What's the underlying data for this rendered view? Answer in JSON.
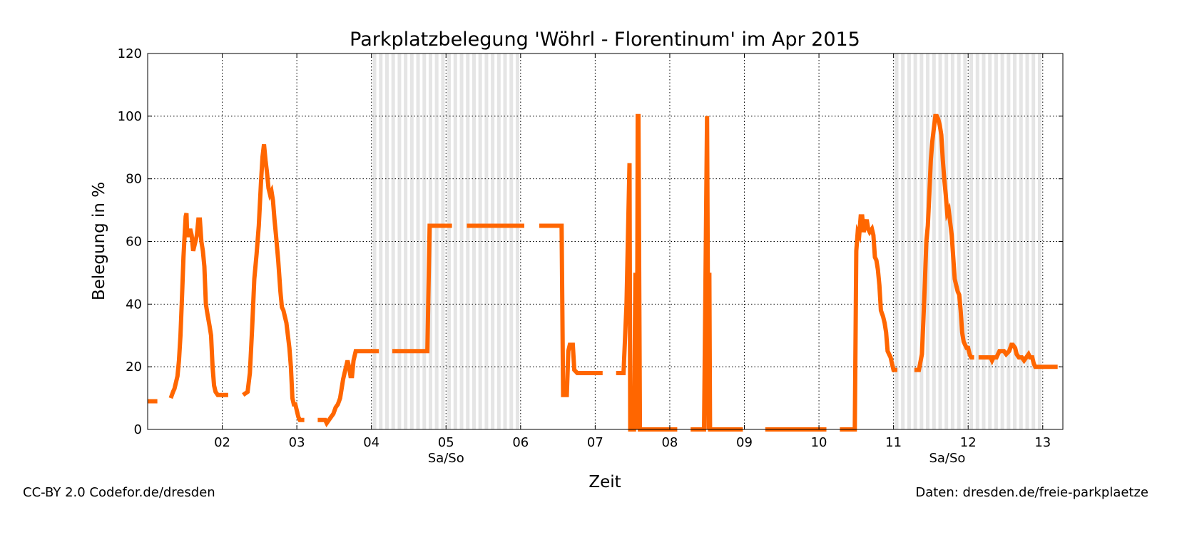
{
  "chart_data": {
    "type": "line",
    "title": "Parkplatzbelegung 'Wöhrl - Florentinum' im Apr 2015",
    "xlabel": "Zeit",
    "ylabel": "Belegung in %",
    "xlim": [
      1.0,
      13.27
    ],
    "ylim": [
      0,
      120
    ],
    "yticks": [
      0,
      20,
      40,
      60,
      80,
      100,
      120
    ],
    "xticks": [
      {
        "x": 2,
        "label": "02"
      },
      {
        "x": 3,
        "label": "03"
      },
      {
        "x": 4,
        "label": "04"
      },
      {
        "x": 5,
        "label": "05"
      },
      {
        "x": 6,
        "label": "06"
      },
      {
        "x": 7,
        "label": "07"
      },
      {
        "x": 8,
        "label": "08"
      },
      {
        "x": 9,
        "label": "09"
      },
      {
        "x": 10,
        "label": "10"
      },
      {
        "x": 11,
        "label": "11"
      },
      {
        "x": 12,
        "label": "12"
      },
      {
        "x": 13,
        "label": "13"
      }
    ],
    "weekend_label": "Sa/So",
    "weekend_ranges": [
      [
        4.0,
        6.0
      ],
      [
        11.0,
        13.0
      ]
    ],
    "weekend_label_positions": [
      5.0,
      11.72
    ],
    "grid": true,
    "series": [
      {
        "color": "#ff6600",
        "segments": [
          [
            [
              1.0,
              9
            ],
            [
              1.13,
              9
            ]
          ],
          [
            [
              1.31,
              10
            ],
            [
              1.34,
              12
            ],
            [
              1.36,
              13
            ],
            [
              1.38,
              15
            ],
            [
              1.4,
              17
            ],
            [
              1.42,
              22
            ],
            [
              1.44,
              30
            ],
            [
              1.46,
              42
            ],
            [
              1.48,
              55
            ],
            [
              1.5,
              64
            ],
            [
              1.51,
              68
            ],
            [
              1.52,
              69
            ],
            [
              1.53,
              62
            ],
            [
              1.55,
              62
            ],
            [
              1.57,
              64
            ],
            [
              1.59,
              62
            ],
            [
              1.61,
              57
            ],
            [
              1.63,
              59
            ],
            [
              1.66,
              62
            ],
            [
              1.68,
              67
            ],
            [
              1.7,
              67
            ],
            [
              1.72,
              60
            ],
            [
              1.74,
              57
            ],
            [
              1.76,
              52
            ],
            [
              1.78,
              40
            ],
            [
              1.8,
              37
            ],
            [
              1.83,
              33
            ],
            [
              1.85,
              30
            ],
            [
              1.87,
              20
            ],
            [
              1.89,
              14
            ],
            [
              1.91,
              12
            ],
            [
              1.94,
              11
            ],
            [
              1.98,
              11
            ],
            [
              2.02,
              11
            ],
            [
              2.08,
              11
            ]
          ],
          [
            [
              2.28,
              11
            ],
            [
              2.34,
              12
            ],
            [
              2.37,
              18
            ],
            [
              2.4,
              32
            ],
            [
              2.43,
              48
            ],
            [
              2.46,
              56
            ],
            [
              2.49,
              65
            ],
            [
              2.52,
              79
            ],
            [
              2.54,
              87
            ],
            [
              2.56,
              91
            ],
            [
              2.58,
              86
            ],
            [
              2.6,
              82
            ],
            [
              2.62,
              77
            ],
            [
              2.64,
              75
            ],
            [
              2.66,
              76
            ],
            [
              2.68,
              73
            ],
            [
              2.7,
              67
            ],
            [
              2.72,
              62
            ],
            [
              2.75,
              54
            ],
            [
              2.78,
              44
            ],
            [
              2.8,
              39
            ],
            [
              2.82,
              38
            ],
            [
              2.84,
              36
            ],
            [
              2.86,
              34
            ],
            [
              2.88,
              30
            ],
            [
              2.9,
              26
            ],
            [
              2.92,
              20
            ],
            [
              2.94,
              10
            ],
            [
              2.96,
              8
            ],
            [
              2.98,
              8
            ],
            [
              3.0,
              6
            ],
            [
              3.02,
              4
            ],
            [
              3.04,
              3
            ],
            [
              3.1,
              3
            ]
          ],
          [
            [
              3.28,
              3
            ],
            [
              3.38,
              3
            ],
            [
              3.4,
              2
            ],
            [
              3.43,
              3
            ],
            [
              3.46,
              4
            ],
            [
              3.49,
              5
            ],
            [
              3.52,
              7
            ],
            [
              3.55,
              8
            ],
            [
              3.58,
              10
            ],
            [
              3.6,
              13
            ],
            [
              3.62,
              16
            ],
            [
              3.64,
              18
            ],
            [
              3.66,
              20
            ],
            [
              3.68,
              22
            ],
            [
              3.7,
              20
            ],
            [
              3.72,
              17
            ],
            [
              3.74,
              17
            ],
            [
              3.76,
              22
            ],
            [
              3.79,
              25
            ],
            [
              3.85,
              25
            ],
            [
              4.1,
              25
            ]
          ],
          [
            [
              4.28,
              25
            ],
            [
              4.75,
              25
            ],
            [
              4.78,
              65
            ],
            [
              5.08,
              65
            ]
          ],
          [
            [
              5.28,
              65
            ],
            [
              6.05,
              65
            ]
          ],
          [
            [
              6.25,
              65
            ],
            [
              6.55,
              65
            ],
            [
              6.57,
              11
            ],
            [
              6.62,
              11
            ],
            [
              6.64,
              25
            ],
            [
              6.66,
              27
            ],
            [
              6.7,
              27
            ],
            [
              6.72,
              19
            ],
            [
              6.76,
              18
            ],
            [
              7.1,
              18
            ]
          ],
          [
            [
              7.28,
              18
            ],
            [
              7.38,
              18
            ],
            [
              7.42,
              40
            ],
            [
              7.46,
              85
            ],
            [
              7.47,
              0
            ],
            [
              7.52,
              0
            ],
            [
              7.54,
              50
            ],
            [
              7.56,
              0
            ],
            [
              7.57,
              100
            ],
            [
              7.58,
              100
            ],
            [
              7.6,
              0
            ],
            [
              8.1,
              0
            ]
          ],
          [
            [
              8.28,
              0
            ],
            [
              8.46,
              0
            ],
            [
              8.5,
              100
            ],
            [
              8.52,
              0
            ],
            [
              8.53,
              50
            ],
            [
              8.54,
              0
            ],
            [
              8.56,
              0
            ],
            [
              8.98,
              0
            ]
          ],
          [
            [
              9.28,
              0
            ],
            [
              10.1,
              0
            ]
          ],
          [
            [
              10.28,
              0
            ],
            [
              10.48,
              0
            ],
            [
              10.5,
              57
            ],
            [
              10.52,
              63
            ],
            [
              10.54,
              62
            ],
            [
              10.56,
              68
            ],
            [
              10.58,
              68
            ],
            [
              10.6,
              63
            ],
            [
              10.62,
              65
            ],
            [
              10.64,
              67
            ],
            [
              10.66,
              64
            ],
            [
              10.68,
              63
            ],
            [
              10.71,
              64
            ],
            [
              10.73,
              62
            ],
            [
              10.75,
              55
            ],
            [
              10.77,
              54
            ],
            [
              10.79,
              51
            ],
            [
              10.81,
              46
            ],
            [
              10.83,
              38
            ],
            [
              10.86,
              36
            ],
            [
              10.88,
              34
            ],
            [
              10.9,
              31
            ],
            [
              10.92,
              25
            ],
            [
              10.94,
              24
            ],
            [
              10.96,
              23
            ],
            [
              10.98,
              21
            ],
            [
              11.0,
              19
            ],
            [
              11.05,
              19
            ]
          ],
          [
            [
              11.28,
              19
            ],
            [
              11.34,
              19
            ],
            [
              11.38,
              24
            ],
            [
              11.4,
              35
            ],
            [
              11.42,
              47
            ],
            [
              11.44,
              60
            ],
            [
              11.46,
              65
            ],
            [
              11.48,
              75
            ],
            [
              11.5,
              86
            ],
            [
              11.52,
              92
            ],
            [
              11.54,
              96
            ],
            [
              11.56,
              100
            ],
            [
              11.58,
              100
            ],
            [
              11.6,
              99
            ],
            [
              11.62,
              97
            ],
            [
              11.64,
              94
            ],
            [
              11.66,
              86
            ],
            [
              11.68,
              80
            ],
            [
              11.7,
              75
            ],
            [
              11.72,
              69
            ],
            [
              11.74,
              70
            ],
            [
              11.76,
              66
            ],
            [
              11.78,
              62
            ],
            [
              11.8,
              55
            ],
            [
              11.82,
              48
            ],
            [
              11.84,
              46
            ],
            [
              11.86,
              44
            ],
            [
              11.88,
              43
            ],
            [
              11.9,
              38
            ],
            [
              11.92,
              31
            ],
            [
              11.94,
              28
            ],
            [
              11.96,
              27
            ],
            [
              11.98,
              26
            ],
            [
              12.0,
              26
            ],
            [
              12.02,
              24
            ],
            [
              12.04,
              23
            ],
            [
              12.08,
              23
            ]
          ],
          [
            [
              12.14,
              23
            ],
            [
              12.3,
              23
            ],
            [
              12.32,
              22
            ],
            [
              12.34,
              23
            ],
            [
              12.38,
              23
            ],
            [
              12.42,
              25
            ],
            [
              12.48,
              25
            ],
            [
              12.51,
              24
            ],
            [
              12.55,
              25
            ],
            [
              12.58,
              27
            ],
            [
              12.6,
              27
            ],
            [
              12.63,
              26
            ],
            [
              12.65,
              24
            ],
            [
              12.68,
              23
            ],
            [
              12.72,
              23
            ],
            [
              12.75,
              22
            ],
            [
              12.78,
              23
            ],
            [
              12.81,
              24
            ],
            [
              12.83,
              23
            ],
            [
              12.86,
              23
            ],
            [
              12.88,
              21
            ],
            [
              12.9,
              20
            ],
            [
              13.2,
              20
            ]
          ]
        ]
      }
    ]
  },
  "footer": {
    "left": "CC-BY 2.0 Codefor.de/dresden",
    "right": "Daten: dresden.de/freie-parkplaetze"
  }
}
